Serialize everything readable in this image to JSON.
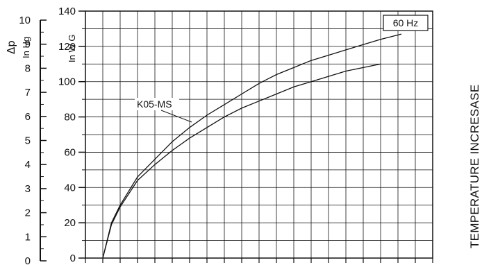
{
  "chart_data": {
    "type": "line",
    "frequency_label": "60 Hz",
    "left_axis": {
      "symbol": "Δp",
      "unit": "In Hg",
      "ticks": [
        "0",
        "1",
        "2",
        "3",
        "4",
        "5",
        "6",
        "7",
        "8",
        "9",
        "10"
      ]
    },
    "right_axis": {
      "unit": "In W G",
      "ylim": [
        0,
        140
      ],
      "ticks": [
        "0",
        "20",
        "40",
        "60",
        "80",
        "100",
        "120",
        "140"
      ]
    },
    "annotation": "K05-MS",
    "side_label": "TEMPERATURE INCRESASE",
    "grid": true,
    "x_divisions": 20,
    "series": [
      {
        "x": [
          1,
          1.5,
          2,
          3,
          4,
          5,
          6,
          7,
          8,
          9,
          10,
          11,
          12,
          13,
          14,
          15,
          16,
          17,
          18.2
        ],
        "values": [
          0,
          20,
          30,
          46,
          56,
          66,
          74,
          81,
          87,
          93,
          99,
          104,
          108,
          112,
          115,
          118,
          121,
          124,
          127
        ]
      },
      {
        "x": [
          1,
          1.5,
          2,
          3,
          4,
          5,
          6,
          7,
          8,
          9,
          10,
          11,
          12,
          13,
          14,
          15,
          16,
          17
        ],
        "values": [
          0,
          19,
          29,
          44,
          53,
          61,
          68,
          74,
          80,
          85,
          89,
          93,
          97,
          100,
          103,
          106,
          108,
          110
        ]
      }
    ]
  }
}
